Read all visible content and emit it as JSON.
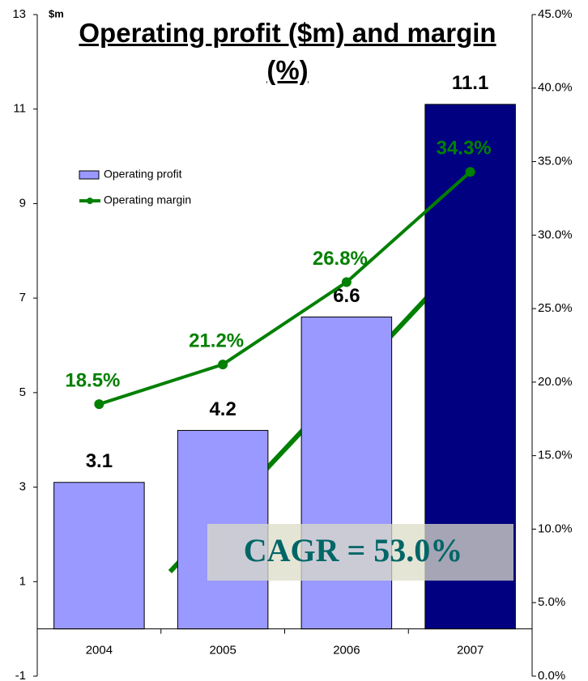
{
  "chart_data": {
    "type": "bar",
    "title": "Operating profit ($m) and margin (%)",
    "ylabel": "$m",
    "categories": [
      "2004",
      "2005",
      "2006",
      "2007"
    ],
    "series": [
      {
        "name": "Operating profit",
        "type": "bar",
        "color": "#9999ff",
        "colors": [
          "#9999ff",
          "#9999ff",
          "#9999ff",
          "#000080"
        ],
        "values": [
          3.1,
          4.2,
          6.6,
          11.1
        ]
      },
      {
        "name": "Operating margin",
        "type": "line",
        "axis": "y2",
        "color": "#008000",
        "values": [
          18.5,
          21.2,
          26.8,
          34.3
        ],
        "value_labels": [
          "18.5%",
          "21.2%",
          "26.8%",
          "34.3%"
        ]
      }
    ],
    "ylim": [
      -1,
      13
    ],
    "yticks": [
      -1,
      1,
      3,
      5,
      7,
      9,
      11,
      13
    ],
    "y2lim": [
      0,
      45
    ],
    "y2ticks": [
      {
        "value": 0,
        "label": "0.0%"
      },
      {
        "value": 5,
        "label": "5.0%"
      },
      {
        "value": 10,
        "label": "10.0%"
      },
      {
        "value": 15,
        "label": "15.0%"
      },
      {
        "value": 20,
        "label": "20.0%"
      },
      {
        "value": 25,
        "label": "25.0%"
      },
      {
        "value": 30,
        "label": "30.0%"
      },
      {
        "value": 35,
        "label": "35.0%"
      },
      {
        "value": 40,
        "label": "40.0%"
      },
      {
        "value": 45,
        "label": "45.0%"
      }
    ],
    "annotation": "CAGR = 53.0%",
    "grid": false
  }
}
